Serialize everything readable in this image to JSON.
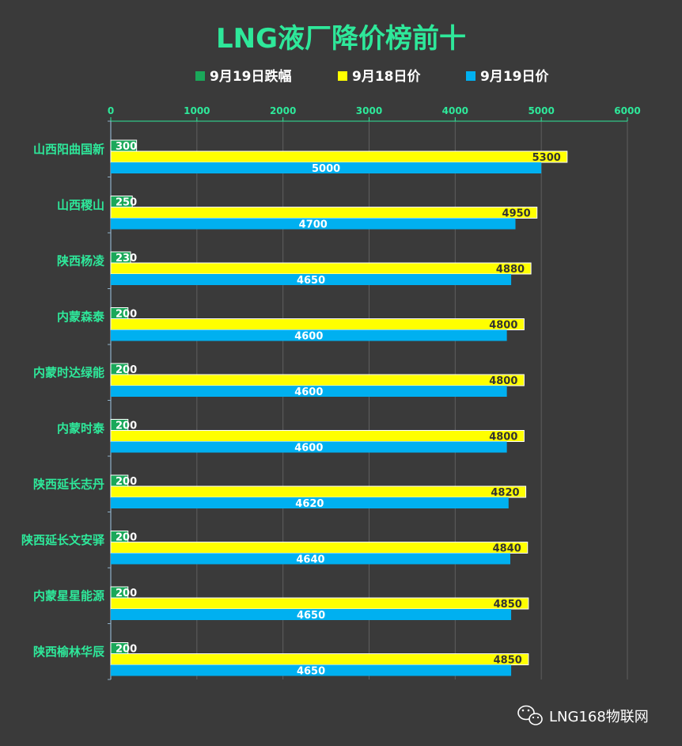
{
  "chart_data": {
    "type": "bar",
    "orientation": "horizontal",
    "title": "LNG液厂降价榜前十",
    "categories": [
      "山西阳曲国新",
      "山西稷山",
      "陕西杨凌",
      "内蒙森泰",
      "内蒙时达绿能",
      "内蒙时泰",
      "陕西延长志丹",
      "陕西延长文安驿",
      "内蒙星星能源",
      "陕西榆林华辰"
    ],
    "series": [
      {
        "name": "9月19日跌幅",
        "color": "#1aa85a",
        "label_color": "#ffffff",
        "values": [
          300,
          250,
          230,
          200,
          200,
          200,
          200,
          200,
          200,
          200
        ]
      },
      {
        "name": "9月18日价",
        "color": "#ffff00",
        "label_color": "#333333",
        "values": [
          5300,
          4950,
          4880,
          4800,
          4800,
          4800,
          4820,
          4840,
          4850,
          4850
        ]
      },
      {
        "name": "9月19日价",
        "color": "#00b0f0",
        "label_color": "#ffffff",
        "values": [
          5000,
          4700,
          4650,
          4600,
          4600,
          4600,
          4620,
          4640,
          4650,
          4650
        ]
      }
    ],
    "xlim": [
      0,
      6000
    ],
    "xticks": [
      0,
      1000,
      2000,
      3000,
      4000,
      5000,
      6000
    ],
    "xlabel": "",
    "ylabel": "",
    "grid": true,
    "legend_position": "top"
  },
  "watermark": {
    "text": "LNG168物联网",
    "icon": "wechat-icon"
  }
}
